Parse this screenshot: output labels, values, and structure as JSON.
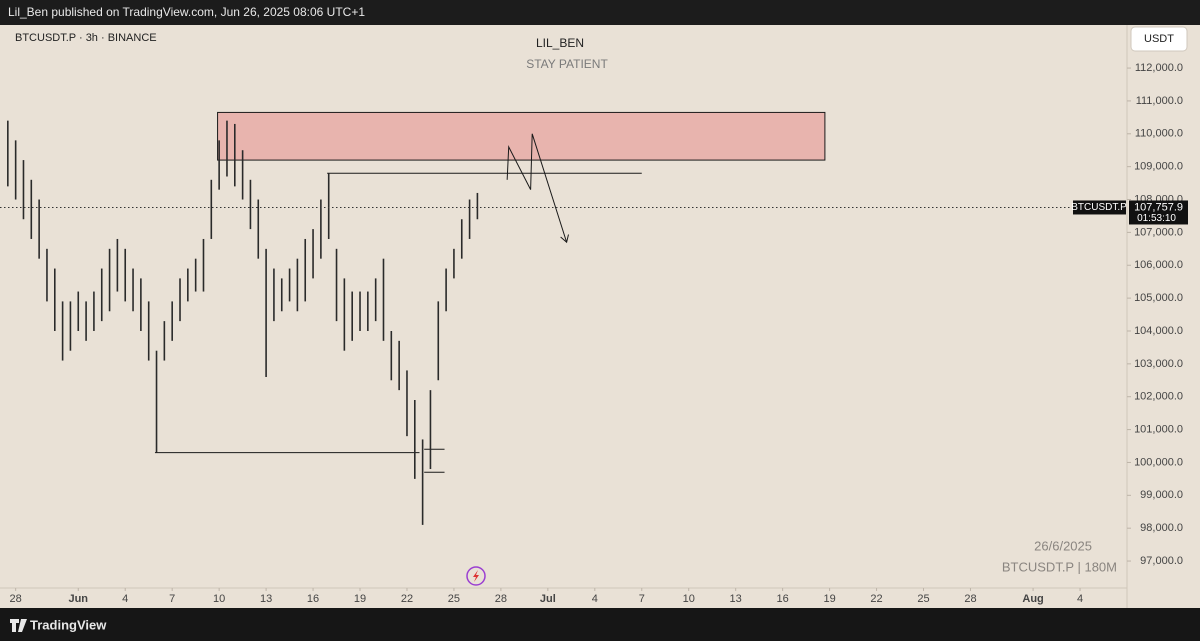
{
  "page": {
    "header": "Lil_Ben published on TradingView.com, Jun 26, 2025 08:06 UTC+1",
    "footer": "TradingView"
  },
  "chart_data": {
    "type": "ohlc",
    "symbol": "BTCUSDT.P · 3h · BINANCE",
    "title": "LIL_BEN",
    "subtitle": "STAY PATIENT",
    "currency": "USDT",
    "watermark_date": "26/6/2025",
    "watermark_symbol": "BTCUSDT.P | 180M",
    "color": "#2a2a2a",
    "x": [
      -0.5,
      0,
      0.5,
      1,
      1.5,
      2,
      2.5,
      3,
      3.5,
      4,
      4.5,
      5,
      5.5,
      6,
      6.5,
      7,
      7.5,
      8,
      8.5,
      9,
      9.5,
      10,
      10.5,
      11,
      11.5,
      12,
      12.5,
      13,
      13.5,
      14,
      14.5,
      15,
      15.5,
      16,
      16.5,
      17,
      17.5,
      18,
      18.5,
      19,
      19.5,
      20,
      20.5,
      21,
      21.5,
      22,
      22.5,
      23,
      23.5,
      24,
      24.5,
      25,
      25.5,
      26,
      26.5,
      27,
      27.5,
      28,
      28.5,
      29,
      29.5
    ],
    "high": [
      110400,
      109800,
      109200,
      108600,
      108000,
      106500,
      105900,
      104900,
      104900,
      105200,
      104900,
      105200,
      105900,
      106500,
      106800,
      106500,
      105900,
      105600,
      104900,
      103400,
      104300,
      104900,
      105600,
      105900,
      106200,
      106800,
      108600,
      109800,
      110400,
      110300,
      109500,
      108600,
      108000,
      106500,
      105900,
      105600,
      105900,
      106200,
      106800,
      107100,
      108000,
      108800,
      106500,
      105600,
      105200,
      105200,
      105200,
      105600,
      106200,
      104000,
      103700,
      102800,
      101900,
      100700,
      102200,
      104900,
      105900,
      106500,
      107400,
      108000,
      108200
    ],
    "low": [
      108400,
      108000,
      107400,
      106800,
      106200,
      104900,
      104000,
      103100,
      103400,
      104000,
      103700,
      104000,
      104300,
      104600,
      105200,
      104900,
      104600,
      104000,
      103100,
      100300,
      103100,
      103700,
      104300,
      104900,
      105200,
      105200,
      106800,
      108300,
      108700,
      108400,
      108000,
      107100,
      106200,
      102600,
      104300,
      104600,
      104900,
      104600,
      104900,
      105600,
      106200,
      106800,
      104300,
      103400,
      103700,
      104000,
      104000,
      104300,
      103700,
      102500,
      102200,
      100800,
      99500,
      98100,
      99800,
      102500,
      104600,
      105600,
      106200,
      106800,
      107400
    ],
    "last_price": {
      "value": 107757.9,
      "label": "107,757.9"
    },
    "last_price_symbol": "BTCUSDT.P",
    "countdown": "01:53:10",
    "zone": {
      "top": 110650,
      "bottom": 109200,
      "x_start": 12.9,
      "x_end": 51.7,
      "color": "#e8b4ae"
    },
    "levels": [
      {
        "value": 108800,
        "x_start": 19.9,
        "x_end": 40
      },
      {
        "value": 100300,
        "x_start": 8.9,
        "x_end": 25.8
      },
      {
        "value": 100400,
        "x_start": 26.1,
        "x_end": 27.4
      },
      {
        "value": 99700,
        "x_start": 26.1,
        "x_end": 27.4
      }
    ],
    "projection": {
      "x": [
        31.4,
        31.5,
        32.9,
        33,
        35.2
      ],
      "y": [
        108600,
        109600,
        108300,
        110000,
        106700
      ]
    },
    "xlim": [
      -1,
      71
    ],
    "ylim": [
      96180,
      113310
    ],
    "xticks": [
      {
        "value": 0,
        "label": "28"
      },
      {
        "value": 4,
        "label": "Jun"
      },
      {
        "value": 7,
        "label": "4"
      },
      {
        "value": 10,
        "label": "7"
      },
      {
        "value": 13,
        "label": "10"
      },
      {
        "value": 16,
        "label": "13"
      },
      {
        "value": 19,
        "label": "16"
      },
      {
        "value": 22,
        "label": "19"
      },
      {
        "value": 25,
        "label": "22"
      },
      {
        "value": 28,
        "label": "25"
      },
      {
        "value": 31,
        "label": "28"
      },
      {
        "value": 34,
        "label": "Jul"
      },
      {
        "value": 37,
        "label": "4"
      },
      {
        "value": 40,
        "label": "7"
      },
      {
        "value": 43,
        "label": "10"
      },
      {
        "value": 46,
        "label": "13"
      },
      {
        "value": 49,
        "label": "16"
      },
      {
        "value": 52,
        "label": "19"
      },
      {
        "value": 55,
        "label": "22"
      },
      {
        "value": 58,
        "label": "25"
      },
      {
        "value": 61,
        "label": "28"
      },
      {
        "value": 65,
        "label": "Aug"
      },
      {
        "value": 68,
        "label": "4"
      }
    ],
    "yticks": [
      {
        "value": 97000,
        "label": "97,000.0"
      },
      {
        "value": 98000,
        "label": "98,000.0"
      },
      {
        "value": 99000,
        "label": "99,000.0"
      },
      {
        "value": 100000,
        "label": "100,000.0"
      },
      {
        "value": 101000,
        "label": "101,000.0"
      },
      {
        "value": 102000,
        "label": "102,000.0"
      },
      {
        "value": 103000,
        "label": "103,000.0"
      },
      {
        "value": 104000,
        "label": "104,000.0"
      },
      {
        "value": 105000,
        "label": "105,000.0"
      },
      {
        "value": 106000,
        "label": "106,000.0"
      },
      {
        "value": 107000,
        "label": "107,000.0"
      },
      {
        "value": 108000,
        "label": "108,000.0"
      },
      {
        "value": 109000,
        "label": "109,000.0"
      },
      {
        "value": 110000,
        "label": "110,000.0"
      },
      {
        "value": 111000,
        "label": "111,000.0"
      },
      {
        "value": 112000,
        "label": "112,000.0"
      }
    ]
  }
}
